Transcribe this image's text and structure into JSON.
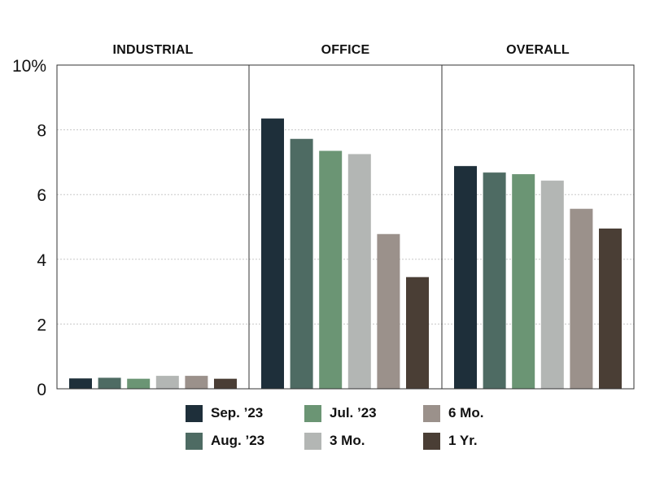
{
  "chart_data": {
    "type": "bar",
    "ylim": [
      0,
      10
    ],
    "yticks": [
      {
        "value": 0,
        "label": "0"
      },
      {
        "value": 2,
        "label": "2"
      },
      {
        "value": 4,
        "label": "4"
      },
      {
        "value": 6,
        "label": "6"
      },
      {
        "value": 8,
        "label": "8"
      },
      {
        "value": 10,
        "label": "10%"
      }
    ],
    "grid": true,
    "legend_position": "bottom",
    "panels": [
      {
        "title": "INDUSTRIAL",
        "values": [
          0.32,
          0.34,
          0.31,
          0.4,
          0.4,
          0.31
        ]
      },
      {
        "title": "OFFICE",
        "values": [
          8.35,
          7.72,
          7.35,
          7.25,
          4.78,
          3.45
        ]
      },
      {
        "title": "OVERALL",
        "values": [
          6.88,
          6.68,
          6.63,
          6.43,
          5.56,
          4.95
        ]
      }
    ],
    "series": [
      {
        "name": "Sep. ’23",
        "color": "#1e2f3a"
      },
      {
        "name": "Aug. ’23",
        "color": "#4e6b63"
      },
      {
        "name": "Jul. ’23",
        "color": "#6b9574"
      },
      {
        "name": "3 Mo.",
        "color": "#b3b6b4"
      },
      {
        "name": "6 Mo.",
        "color": "#9b918b"
      },
      {
        "name": "1 Yr.",
        "color": "#4a3e35"
      }
    ]
  }
}
